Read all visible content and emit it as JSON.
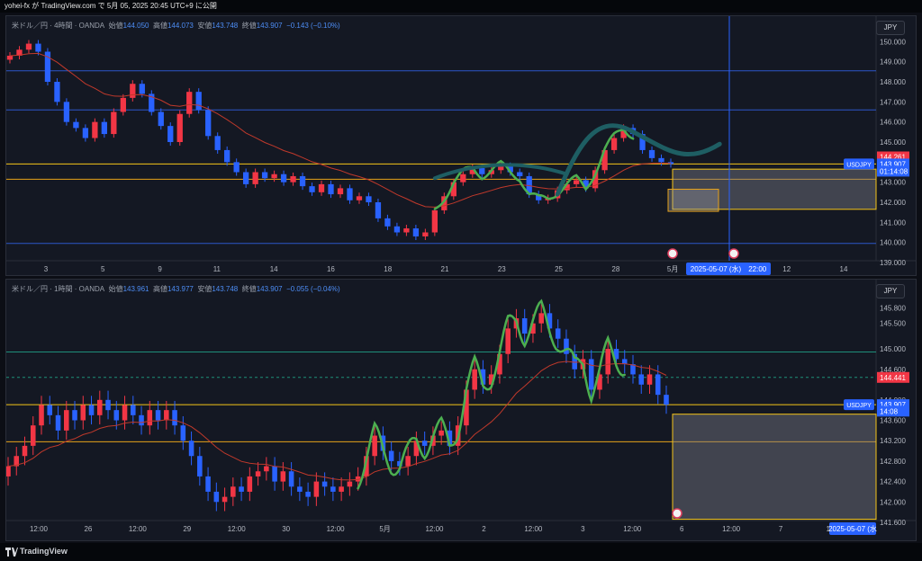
{
  "header": {
    "text": "yohei-fx が TradingView.com で 5月 05, 2025 20:45 UTC+9 に公開"
  },
  "footer": {
    "brand": "TradingView"
  },
  "colors": {
    "up": "#f23645",
    "down": "#2962ff",
    "ma": "#c0392b",
    "wave_green": "#4caf50",
    "hline_blue": "#2c56c9",
    "hline_yellow": "#f5c518",
    "hline_orange": "#e6a21a",
    "hline_teal": "#1e8f7a",
    "target_shape": "#1e5e63"
  },
  "chart_data": [
    {
      "type": "candlestick",
      "title": "米ドル／円 · 4時間 · OANDA",
      "ohlc_labels": {
        "open_label": "始値",
        "open": "144.050",
        "high_label": "高値",
        "high": "144.073",
        "low_label": "安値",
        "low": "143.748",
        "close_label": "終値",
        "close": "143.907",
        "change": "−0.143 (−0.10%)"
      },
      "currency": "JPY",
      "ylim": [
        139.0,
        151.0
      ],
      "y_ticks": [
        "150.000",
        "149.000",
        "148.000",
        "147.000",
        "146.000",
        "145.000",
        "144.000",
        "143.000",
        "142.000",
        "141.000",
        "140.000",
        "139.000"
      ],
      "x_ticks": [
        "3",
        "5",
        "9",
        "11",
        "14",
        "16",
        "18",
        "21",
        "23",
        "25",
        "28",
        "5月",
        "3",
        "12",
        "14"
      ],
      "x_tooltip": "2025-05-07 (水)　22:00",
      "price_labels": [
        {
          "text": "144.261",
          "price": 144.261,
          "color": "#f23645"
        },
        {
          "text": "USDJPY",
          "price": 143.907,
          "color": "#2962ff",
          "left": true
        },
        {
          "text": "143.907",
          "price": 143.907,
          "color": "#2962ff"
        },
        {
          "text": "01:14:08",
          "price": 143.55,
          "color": "#2962ff"
        }
      ],
      "horizontal_levels": [
        {
          "price": 148.55,
          "color": "blue"
        },
        {
          "price": 146.6,
          "color": "blue"
        },
        {
          "price": 143.907,
          "color": "yellow"
        },
        {
          "price": 143.15,
          "color": "orange"
        },
        {
          "price": 139.95,
          "color": "blue"
        }
      ],
      "zone": {
        "top": 143.65,
        "bottom": 141.65
      },
      "inner_zone": {
        "top": 142.65,
        "bottom": 141.55
      },
      "closes": [
        149.3,
        149.6,
        149.9,
        149.5,
        148.0,
        147.0,
        146.0,
        145.7,
        145.2,
        146.0,
        145.4,
        146.5,
        147.2,
        147.9,
        147.4,
        146.5,
        145.8,
        145.0,
        146.4,
        147.5,
        146.6,
        145.3,
        144.6,
        144.0,
        143.5,
        142.9,
        143.5,
        143.2,
        143.4,
        143.0,
        143.3,
        142.8,
        142.5,
        142.9,
        142.4,
        142.7,
        142.1,
        142.3,
        142.0,
        141.2,
        140.8,
        140.5,
        140.7,
        140.3,
        140.5,
        141.6,
        142.3,
        143.0,
        143.4,
        143.7,
        143.4,
        143.6,
        143.8,
        143.5,
        143.3,
        142.4,
        142.1,
        142.2,
        142.6,
        142.9,
        143.1,
        142.7,
        143.6,
        144.6,
        145.2,
        145.7,
        145.4,
        144.6,
        144.2,
        144.0,
        143.907
      ]
    },
    {
      "type": "candlestick",
      "title": "米ドル／円 · 1時間 · OANDA",
      "ohlc_labels": {
        "open_label": "始値",
        "open": "143.961",
        "high_label": "高値",
        "high": "143.977",
        "low_label": "安値",
        "low": "143.748",
        "close_label": "終値",
        "close": "143.907",
        "change": "−0.055 (−0.04%)"
      },
      "currency": "JPY",
      "ylim": [
        141.6,
        145.9
      ],
      "y_ticks": [
        "145.800",
        "145.500",
        "145.000",
        "144.600",
        "144.000",
        "143.600",
        "143.200",
        "142.800",
        "142.400",
        "142.000",
        "141.600"
      ],
      "x_ticks": [
        "12:00",
        "26",
        "12:00",
        "29",
        "12:00",
        "30",
        "12:00",
        "5月",
        "12:00",
        "2",
        "12:00",
        "3",
        "12:00",
        "6",
        "12:00",
        "7",
        "12"
      ],
      "x_tooltip": "2025-05-07 (水",
      "price_labels": [
        {
          "text": "144.441",
          "price": 144.441,
          "color": "#f23645"
        },
        {
          "text": "USDJPY",
          "price": 143.907,
          "color": "#2962ff",
          "left": true
        },
        {
          "text": "143.907",
          "price": 143.907,
          "color": "#2962ff"
        },
        {
          "text": "14:08",
          "price": 143.78,
          "color": "#2962ff"
        }
      ],
      "horizontal_levels": [
        {
          "price": 144.94,
          "color": "teal"
        },
        {
          "price": 144.441,
          "color": "teal_dashed"
        },
        {
          "price": 143.907,
          "color": "yellow"
        },
        {
          "price": 143.18,
          "color": "orange"
        }
      ],
      "zone": {
        "top": 143.72,
        "bottom": 141.66
      },
      "closes": [
        142.7,
        142.9,
        143.1,
        143.5,
        143.9,
        143.7,
        143.4,
        143.8,
        143.6,
        143.9,
        143.7,
        144.0,
        143.8,
        143.6,
        143.9,
        143.7,
        143.5,
        143.8,
        143.6,
        143.8,
        143.5,
        143.2,
        142.9,
        142.5,
        142.2,
        142.0,
        142.1,
        142.3,
        142.2,
        142.5,
        142.6,
        142.7,
        142.4,
        142.6,
        142.3,
        142.2,
        142.1,
        142.4,
        142.3,
        142.2,
        142.3,
        142.4,
        142.5,
        142.9,
        143.3,
        143.0,
        142.8,
        142.7,
        142.9,
        143.2,
        143.1,
        143.3,
        143.4,
        143.1,
        143.5,
        144.2,
        144.6,
        144.3,
        144.5,
        144.9,
        145.4,
        145.6,
        145.3,
        145.5,
        145.7,
        145.4,
        145.2,
        144.9,
        144.6,
        144.8,
        144.2,
        144.5,
        145.0,
        144.8,
        144.7,
        144.5,
        144.3,
        144.5,
        144.1,
        143.907
      ]
    }
  ]
}
